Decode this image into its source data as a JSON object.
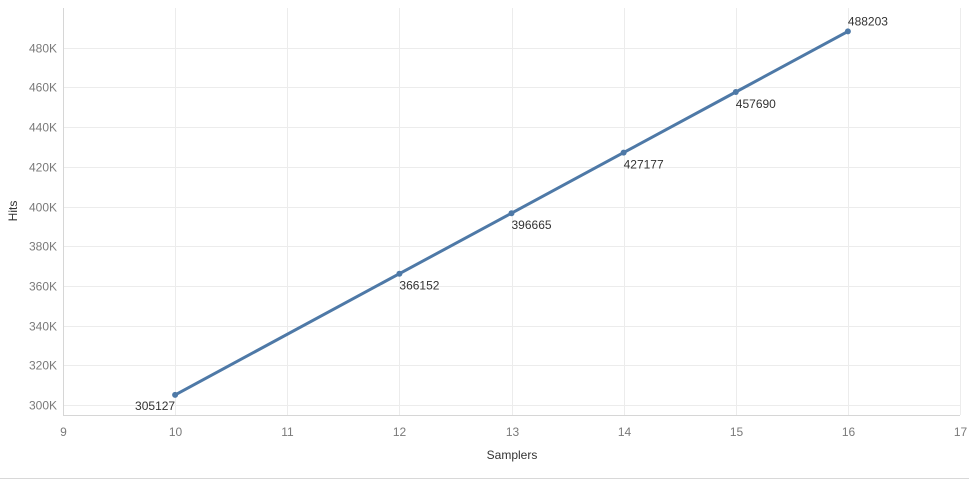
{
  "chart_data": {
    "type": "line",
    "xlabel": "Samplers",
    "ylabel": "Hits",
    "xlim": [
      9,
      17
    ],
    "ylim": [
      295000,
      500000
    ],
    "x_ticks": [
      9,
      10,
      11,
      12,
      13,
      14,
      15,
      16,
      17
    ],
    "x_tick_labels": [
      "9",
      "10",
      "11",
      "12",
      "13",
      "14",
      "15",
      "16",
      "17"
    ],
    "y_ticks": [
      300000,
      320000,
      340000,
      360000,
      380000,
      400000,
      420000,
      440000,
      460000,
      480000
    ],
    "y_tick_labels": [
      "300K",
      "320K",
      "340K",
      "360K",
      "380K",
      "400K",
      "420K",
      "440K",
      "460K",
      "480K"
    ],
    "grid": true,
    "line_color": "#4e79a7",
    "series": [
      {
        "x": [
          10,
          12,
          13,
          14,
          15,
          16
        ],
        "values": [
          305127,
          366152,
          396665,
          427177,
          457690,
          488203
        ],
        "labels": [
          "305127",
          "366152",
          "396665",
          "427177",
          "457690",
          "488203"
        ]
      }
    ]
  }
}
